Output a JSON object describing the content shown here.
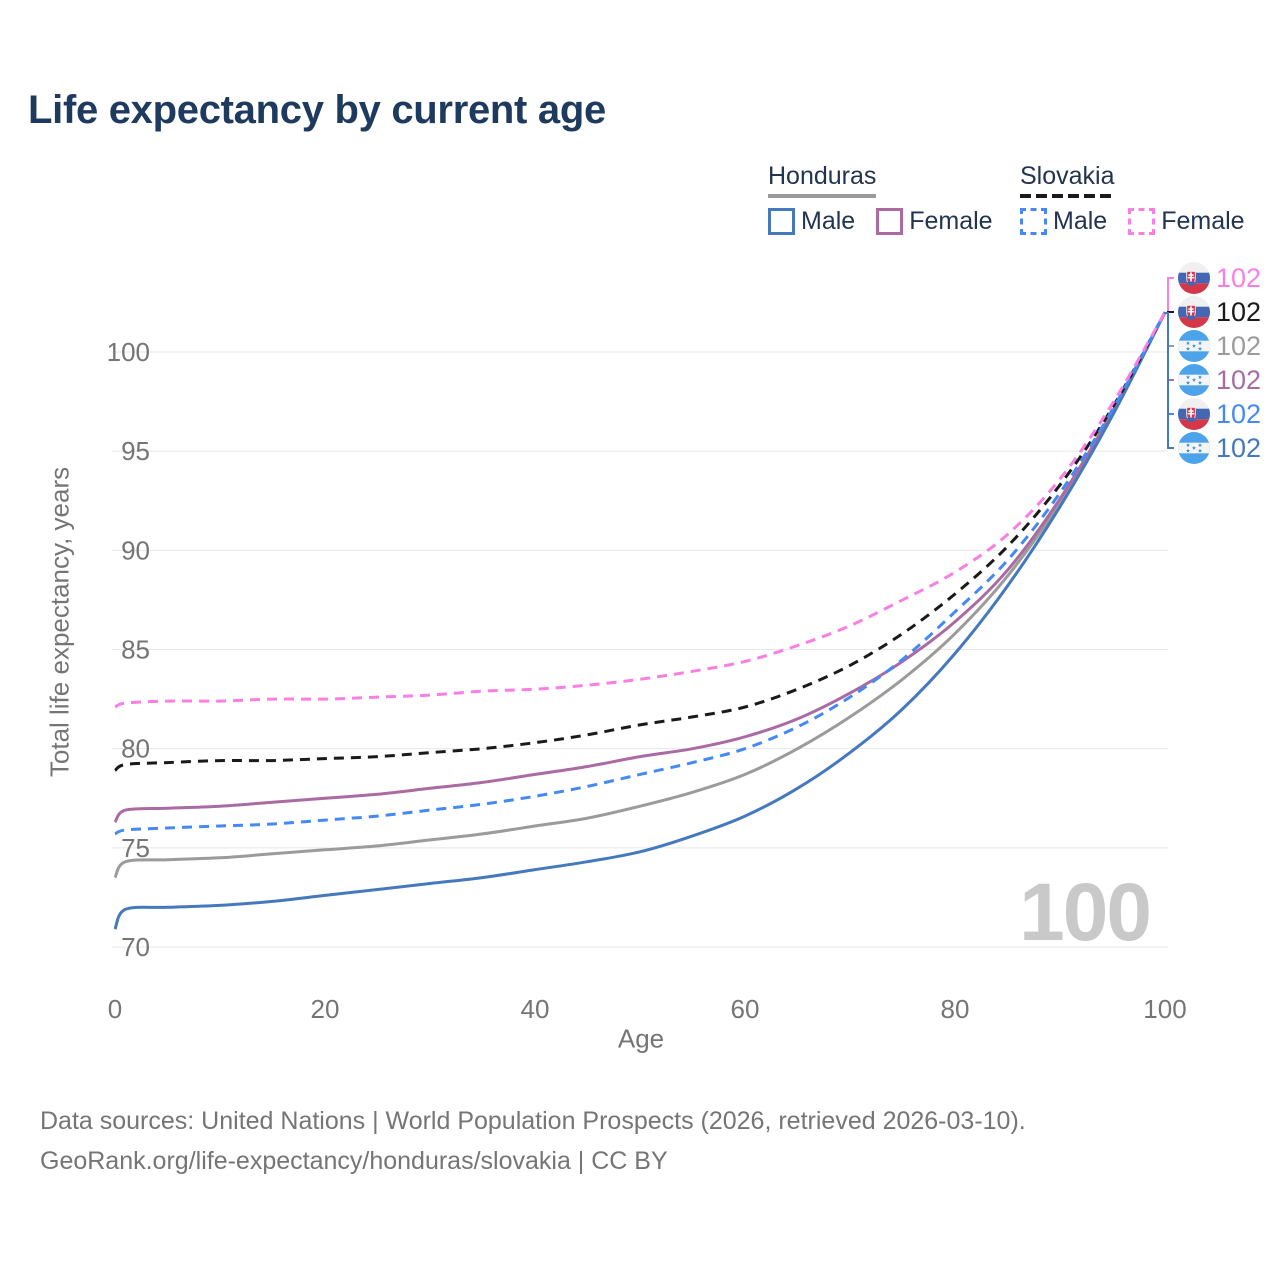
{
  "page": {
    "title": "Life expectancy by current age"
  },
  "colors": {
    "title": "#1e3a5f",
    "legend_text": "#22344f",
    "axis_text": "#757575",
    "grid": "#e7e7e7",
    "watermark": "#c9c9c9",
    "background": "#ffffff"
  },
  "legend": {
    "groups": [
      {
        "title": "Honduras",
        "underline": {
          "style": "solid",
          "color": "#9a9a9a"
        },
        "items": [
          {
            "label": "Male",
            "swatch": "solid",
            "color": "#4579bd"
          },
          {
            "label": "Female",
            "swatch": "solid",
            "color": "#aa6ba3"
          }
        ]
      },
      {
        "title": "Slovakia",
        "underline": {
          "style": "dashed",
          "color": "#1a1a1a"
        },
        "items": [
          {
            "label": "Male",
            "swatch": "dashed",
            "color": "#4589f4"
          },
          {
            "label": "Female",
            "swatch": "dashed",
            "color": "#fa7fe3"
          }
        ]
      }
    ]
  },
  "chart_data": {
    "type": "line",
    "title": "Life expectancy by current age",
    "xlabel": "Age",
    "ylabel": "Total life expectancy, years",
    "xlim": [
      0,
      100
    ],
    "ylim": [
      70,
      102
    ],
    "x_ticks": [
      0,
      20,
      40,
      60,
      80,
      100
    ],
    "y_ticks": [
      70,
      75,
      80,
      85,
      90,
      95,
      100
    ],
    "grid": "horizontal",
    "legend_position": "top-right",
    "hover_age_watermark": "100",
    "ages": [
      0,
      1,
      5,
      10,
      15,
      20,
      25,
      30,
      35,
      40,
      45,
      50,
      55,
      60,
      65,
      70,
      75,
      80,
      85,
      90,
      95,
      100
    ],
    "series": [
      {
        "name": "Honduras Total",
        "country": "Honduras",
        "sex": "Total",
        "style": "solid",
        "color": "#9b9b9b",
        "values": [
          73.5,
          74.3,
          74.4,
          74.5,
          74.7,
          74.9,
          75.1,
          75.4,
          75.7,
          76.1,
          76.5,
          77.1,
          77.8,
          78.7,
          80.0,
          81.6,
          83.5,
          85.8,
          88.7,
          92.4,
          96.9,
          102
        ]
      },
      {
        "name": "Honduras Female",
        "country": "Honduras",
        "sex": "Female",
        "style": "solid",
        "color": "#aa6ba3",
        "values": [
          76.3,
          76.9,
          77.0,
          77.1,
          77.3,
          77.5,
          77.7,
          78.0,
          78.3,
          78.7,
          79.1,
          79.6,
          80.0,
          80.6,
          81.5,
          82.8,
          84.4,
          86.4,
          89.0,
          92.6,
          97.0,
          102
        ]
      },
      {
        "name": "Honduras Male",
        "country": "Honduras",
        "sex": "Male",
        "style": "solid",
        "color": "#4579bd",
        "values": [
          70.9,
          71.9,
          72.0,
          72.1,
          72.3,
          72.6,
          72.9,
          73.2,
          73.5,
          73.9,
          74.3,
          74.8,
          75.6,
          76.6,
          78.0,
          79.8,
          82.0,
          84.8,
          88.2,
          92.2,
          96.8,
          102
        ]
      },
      {
        "name": "Slovakia Total",
        "country": "Slovakia",
        "sex": "Total",
        "style": "dashed",
        "color": "#1a1a1a",
        "values": [
          78.9,
          79.2,
          79.3,
          79.4,
          79.4,
          79.5,
          79.6,
          79.8,
          80.0,
          80.3,
          80.7,
          81.2,
          81.6,
          82.1,
          83.0,
          84.2,
          85.8,
          87.8,
          90.2,
          93.3,
          97.2,
          102
        ]
      },
      {
        "name": "Slovakia Male",
        "country": "Slovakia",
        "sex": "Male",
        "style": "dashed",
        "color": "#4589f4",
        "values": [
          75.7,
          75.9,
          76.0,
          76.1,
          76.2,
          76.4,
          76.6,
          76.9,
          77.2,
          77.6,
          78.1,
          78.7,
          79.3,
          80.0,
          81.1,
          82.6,
          84.5,
          86.9,
          89.5,
          92.9,
          97.1,
          102
        ]
      },
      {
        "name": "Slovakia Female",
        "country": "Slovakia",
        "sex": "Female",
        "style": "dashed",
        "color": "#fa7fe3",
        "values": [
          82.1,
          82.3,
          82.4,
          82.4,
          82.5,
          82.5,
          82.6,
          82.7,
          82.9,
          83.0,
          83.2,
          83.5,
          83.9,
          84.4,
          85.2,
          86.2,
          87.5,
          88.9,
          90.8,
          93.6,
          97.4,
          102
        ]
      }
    ],
    "end_value_labels": [
      {
        "label": "102",
        "series": "Slovakia Female",
        "flag": "slovakia-flag-icon",
        "color": "#fa7fe3"
      },
      {
        "label": "102",
        "series": "Slovakia Total",
        "flag": "slovakia-flag-icon",
        "color": "#1a1a1a"
      },
      {
        "label": "102",
        "series": "Honduras Total",
        "flag": "honduras-flag-icon",
        "color": "#9b9b9b"
      },
      {
        "label": "102",
        "series": "Honduras Female",
        "flag": "honduras-flag-icon",
        "color": "#aa6ba3"
      },
      {
        "label": "102",
        "series": "Slovakia Male",
        "flag": "slovakia-flag-icon",
        "color": "#4589f4"
      },
      {
        "label": "102",
        "series": "Honduras Male",
        "flag": "honduras-flag-icon",
        "color": "#4579bd"
      }
    ]
  },
  "footer": {
    "line1": "Data sources: United Nations | World Population Prospects (2026, retrieved 2026-03-10).",
    "line2": "GeoRank.org/life-expectancy/honduras/slovakia | CC BY"
  }
}
